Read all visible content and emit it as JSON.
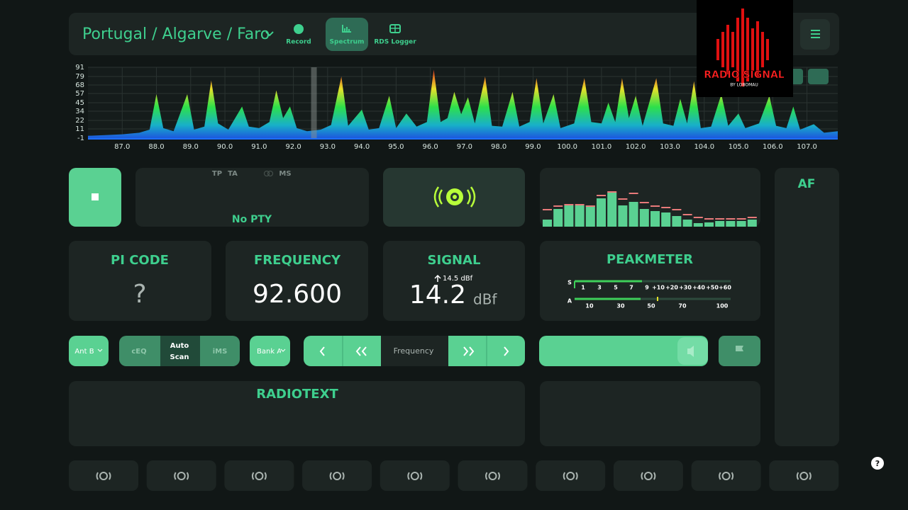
{
  "header": {
    "location": "Portugal / Algarve / Faro",
    "buttons": [
      "Record",
      "Spectrum",
      "RDS Logger"
    ]
  },
  "logo": {
    "title": "RADIO SIGNAL",
    "subtitle": "BY LOBOMAU"
  },
  "chart_data": {
    "type": "area",
    "x": [
      86.0,
      86.5,
      87.0,
      87.5,
      87.8,
      88.0,
      88.2,
      88.5,
      88.9,
      89.1,
      89.4,
      89.6,
      89.8,
      90.1,
      90.5,
      90.7,
      91.0,
      91.3,
      91.5,
      91.7,
      91.9,
      92.1,
      92.4,
      92.8,
      93.1,
      93.4,
      93.6,
      94.0,
      94.2,
      94.5,
      94.8,
      95.0,
      95.3,
      95.6,
      95.9,
      96.1,
      96.3,
      96.5,
      96.7,
      96.9,
      97.1,
      97.3,
      97.6,
      97.8,
      98.1,
      98.4,
      98.6,
      98.9,
      99.1,
      99.3,
      99.6,
      99.8,
      100.2,
      100.5,
      100.7,
      101.0,
      101.2,
      101.4,
      101.6,
      101.8,
      102.0,
      102.2,
      102.6,
      102.8,
      103.1,
      103.3,
      103.5,
      103.7,
      103.9,
      104.2,
      104.5,
      104.7,
      105.0,
      105.2,
      105.6,
      105.9,
      106.1,
      106.4,
      106.6,
      106.8,
      107.2,
      107.5,
      107.9
    ],
    "values": [
      2,
      3,
      4,
      6,
      10,
      56,
      12,
      8,
      56,
      10,
      14,
      74,
      18,
      10,
      40,
      14,
      12,
      20,
      61,
      25,
      40,
      12,
      8,
      10,
      16,
      79,
      15,
      36,
      10,
      12,
      54,
      12,
      31,
      14,
      20,
      88,
      20,
      25,
      59,
      30,
      52,
      18,
      79,
      15,
      14,
      59,
      14,
      20,
      77,
      18,
      56,
      12,
      18,
      77,
      20,
      18,
      45,
      20,
      77,
      25,
      54,
      15,
      77,
      18,
      15,
      50,
      18,
      73,
      12,
      14,
      56,
      15,
      31,
      12,
      18,
      54,
      15,
      12,
      40,
      10,
      17,
      6,
      8
    ],
    "xlim": [
      86.0,
      107.9
    ],
    "ylim": [
      -1,
      91
    ],
    "yticks": [
      91,
      79,
      68,
      57,
      45,
      34,
      22,
      11,
      -1
    ],
    "xticks": [
      {
        "value": 87,
        "label": "87.0"
      },
      {
        "value": 88,
        "label": "88.0"
      },
      {
        "value": 89,
        "label": "89.0"
      },
      {
        "value": 90,
        "label": "90.0"
      },
      {
        "value": 91,
        "label": "91.0"
      },
      {
        "value": 92,
        "label": "92.0"
      },
      {
        "value": 93,
        "label": "93.0"
      },
      {
        "value": 94,
        "label": "94.0"
      },
      {
        "value": 95,
        "label": "95.0"
      },
      {
        "value": 96,
        "label": "96.0"
      },
      {
        "value": 97,
        "label": "97.0"
      },
      {
        "value": 98,
        "label": "98.0"
      },
      {
        "value": 99,
        "label": "99.0"
      },
      {
        "value": 100,
        "label": "100.0"
      },
      {
        "value": 101,
        "label": "101.0"
      },
      {
        "value": 102,
        "label": "102.0"
      },
      {
        "value": 103,
        "label": "103.0"
      },
      {
        "value": 104,
        "label": "104.0"
      },
      {
        "value": 105,
        "label": "105.0"
      },
      {
        "value": 106,
        "label": "106.0"
      },
      {
        "value": 107,
        "label": "107.0"
      }
    ],
    "grid": true
  },
  "rds": {
    "flags": [
      "TP",
      "TA",
      "MS"
    ],
    "pty": "No PTY"
  },
  "signal_history": {
    "values": [
      10,
      25,
      30,
      30,
      30,
      40,
      48,
      30,
      35,
      25,
      22,
      20,
      15,
      10,
      5,
      6,
      8,
      8,
      8,
      10
    ],
    "peaks": [
      25,
      30,
      32,
      32,
      30,
      45,
      50,
      40,
      48,
      35,
      30,
      28,
      25,
      18,
      14,
      12,
      12,
      12,
      12,
      14
    ]
  },
  "pi": {
    "title": "PI CODE",
    "value": "?"
  },
  "frequency": {
    "title": "FREQUENCY",
    "value": "92.600"
  },
  "signal": {
    "title": "SIGNAL",
    "peak": "14.5 dBf",
    "value": 14.2,
    "unit": "dBf"
  },
  "peakmeter": {
    "title": "PEAKMETER",
    "s_label": "S",
    "a_label": "A",
    "s_scale": [
      "1",
      "3",
      "5",
      "7",
      "9",
      "+10",
      "+20",
      "+30",
      "+40",
      "+50",
      "+60"
    ],
    "a_scale": [
      "10",
      "30",
      "50",
      "70",
      "100"
    ]
  },
  "controls": {
    "antenna": "Ant B",
    "eq": "cEQ",
    "scan": "Auto Scan",
    "ims": "iMS",
    "bank": "Bank A",
    "tune": "Frequency"
  },
  "radiotext": {
    "title": "RADIOTEXT"
  },
  "af": {
    "title": "AF"
  },
  "help": "?"
}
